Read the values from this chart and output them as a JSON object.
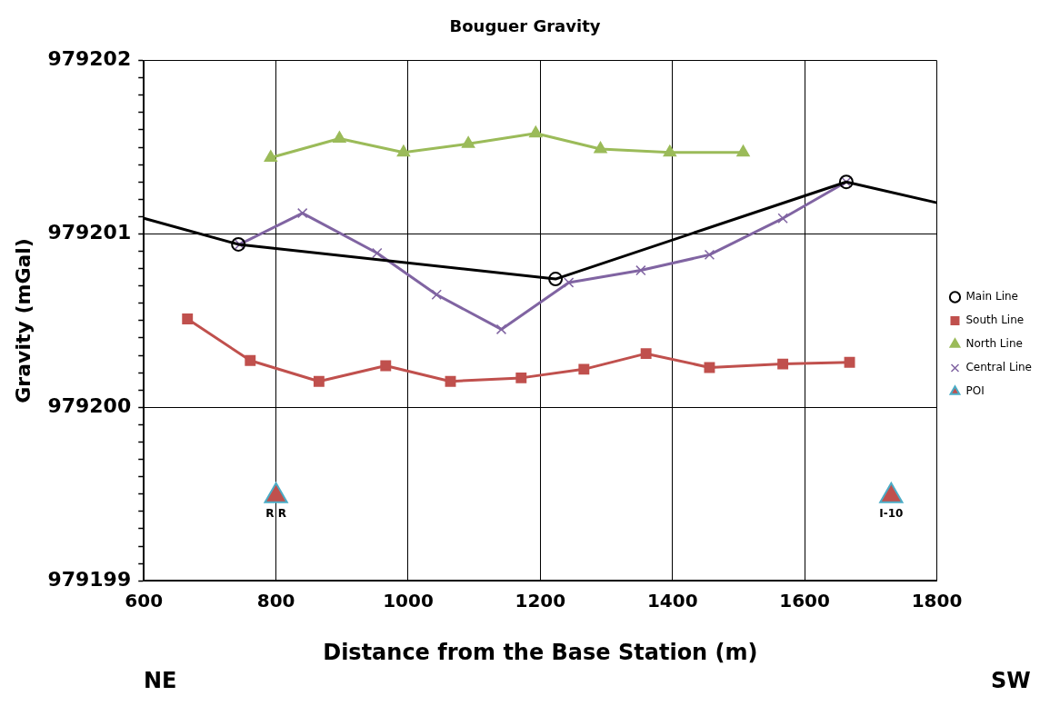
{
  "chart_data": {
    "type": "line",
    "title": "Bouguer Gravity",
    "xlabel": "Distance from the Base Station (m)",
    "ylabel": "Gravity (mGal)",
    "xlim": [
      600,
      1800
    ],
    "xticks": [
      600,
      800,
      1000,
      1200,
      1400,
      1600,
      1800
    ],
    "ylim": [
      979199,
      979202
    ],
    "yticks": [
      979199,
      {
        "value": 979199.1,
        "label": null
      },
      {
        "value": 979199.2,
        "label": null
      },
      {
        "value": 979199.3,
        "label": null
      },
      {
        "value": 979199.4,
        "label": null
      },
      {
        "value": 979199.5,
        "label": null
      },
      {
        "value": 979199.6,
        "label": null
      },
      {
        "value": 979199.7,
        "label": null
      },
      {
        "value": 979199.8,
        "label": null
      },
      {
        "value": 979199.9,
        "label": null
      },
      979200,
      {
        "value": 979200.1,
        "label": null
      },
      {
        "value": 979200.2,
        "label": null
      },
      {
        "value": 979200.3,
        "label": null
      },
      {
        "value": 979200.4,
        "label": null
      },
      {
        "value": 979200.5,
        "label": null
      },
      {
        "value": 979200.6,
        "label": null
      },
      {
        "value": 979200.7,
        "label": null
      },
      {
        "value": 979200.8,
        "label": null
      },
      {
        "value": 979200.9,
        "label": null
      },
      979201,
      {
        "value": 979201.1,
        "label": null
      },
      {
        "value": 979201.2,
        "label": null
      },
      {
        "value": 979201.3,
        "label": null
      },
      {
        "value": 979201.4,
        "label": null
      },
      {
        "value": 979201.5,
        "label": null
      },
      {
        "value": 979201.6,
        "label": null
      },
      {
        "value": 979201.7,
        "label": null
      },
      {
        "value": 979201.8,
        "label": null
      },
      {
        "value": 979201.9,
        "label": null
      },
      979202
    ],
    "grid": true,
    "legend": "right",
    "line_style": "solid",
    "series": [
      {
        "name": "Main Line",
        "color": "#000000",
        "marker": "circle",
        "x": [
          600,
          743,
          1223,
          1663,
          1800
        ],
        "values": [
          979201.09,
          979200.94,
          979200.74,
          979201.3,
          979201.18
        ]
      },
      {
        "name": "South Line",
        "color": "#c0504d",
        "marker": "square",
        "x": [
          666,
          761,
          865,
          966,
          1064,
          1171,
          1266,
          1360,
          1456,
          1567,
          1668
        ],
        "values": [
          979200.51,
          979200.27,
          979200.15,
          979200.24,
          979200.15,
          979200.17,
          979200.22,
          979200.31,
          979200.23,
          979200.25,
          979200.26
        ]
      },
      {
        "name": "North Line",
        "color": "#9bbb59",
        "marker": "triangle",
        "x": [
          792,
          896,
          993,
          1091,
          1193,
          1291,
          1396,
          1507
        ],
        "values": [
          979201.44,
          979201.55,
          979201.47,
          979201.52,
          979201.58,
          979201.49,
          979201.47,
          979201.47
        ]
      },
      {
        "name": "Central Line",
        "color": "#8064a2",
        "marker": "cross",
        "x": [
          745,
          840,
          953,
          1043,
          1141,
          1243,
          1352,
          1456,
          1567,
          1663
        ],
        "values": [
          979200.94,
          979201.12,
          979200.89,
          979200.65,
          979200.45,
          979200.72,
          979200.79,
          979200.88,
          979201.09,
          979201.3
        ]
      },
      {
        "name": "POI",
        "type": "scatter",
        "color": "#c0504d",
        "marker": "triangle",
        "x": [
          800,
          1731
        ],
        "values": [
          979199.49,
          979199.49
        ]
      }
    ],
    "annotations": [
      {
        "text": "R R",
        "x": 800,
        "y": 979199.49
      },
      {
        "text": "I-10",
        "x": 1731,
        "y": 979199.49
      },
      "NE",
      "SW"
    ]
  }
}
